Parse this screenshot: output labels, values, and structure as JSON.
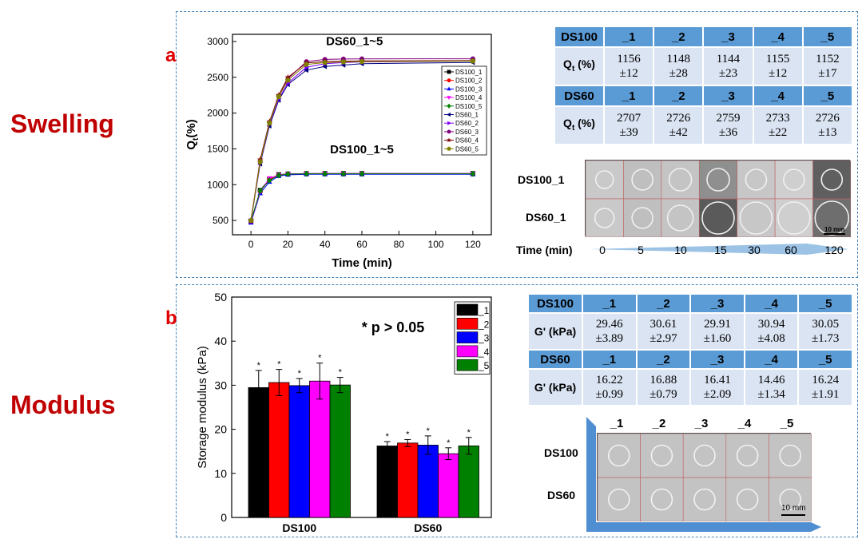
{
  "side_labels": {
    "swelling": "Swelling",
    "modulus": "Modulus"
  },
  "panels": {
    "a": "a",
    "b": "b"
  },
  "chart_data": [
    {
      "type": "line",
      "xlabel": "Time (min)",
      "ylabel": "Q",
      "ylabel_sub": "t",
      "ylabel_unit": "(%)",
      "xlim": [
        -10,
        130
      ],
      "ylim": [
        300,
        3100
      ],
      "xticks": [
        0,
        20,
        40,
        60,
        80,
        100,
        120
      ],
      "yticks": [
        500,
        1000,
        1500,
        2000,
        2500,
        3000
      ],
      "annotations": [
        "DS60_1~5",
        "DS100_1~5"
      ],
      "x": [
        0,
        5,
        10,
        15,
        20,
        30,
        40,
        50,
        60,
        120
      ],
      "series": [
        {
          "name": "DS100_1",
          "color": "#000000",
          "marker": "square",
          "values": [
            490,
            920,
            1080,
            1140,
            1150,
            1155,
            1156,
            1156,
            1156,
            1156
          ]
        },
        {
          "name": "DS100_2",
          "color": "#ff0000",
          "marker": "circle",
          "values": [
            480,
            910,
            1070,
            1130,
            1145,
            1148,
            1148,
            1148,
            1148,
            1148
          ]
        },
        {
          "name": "DS100_3",
          "color": "#0000ff",
          "marker": "triangle-up",
          "values": [
            470,
            880,
            1040,
            1120,
            1138,
            1144,
            1144,
            1144,
            1144,
            1144
          ]
        },
        {
          "name": "DS100_4",
          "color": "#ff00ff",
          "marker": "triangle-down",
          "values": [
            485,
            900,
            1090,
            1135,
            1150,
            1155,
            1155,
            1155,
            1155,
            1155
          ]
        },
        {
          "name": "DS100_5",
          "color": "#008000",
          "marker": "diamond",
          "values": [
            495,
            915,
            1060,
            1130,
            1148,
            1152,
            1152,
            1152,
            1152,
            1152
          ]
        },
        {
          "name": "DS60_1",
          "color": "#000080",
          "marker": "triangle-left",
          "values": [
            500,
            1290,
            1820,
            2180,
            2400,
            2600,
            2650,
            2670,
            2690,
            2707
          ]
        },
        {
          "name": "DS60_2",
          "color": "#8000ff",
          "marker": "triangle-right",
          "values": [
            495,
            1310,
            1850,
            2200,
            2420,
            2640,
            2690,
            2705,
            2715,
            2726
          ]
        },
        {
          "name": "DS60_3",
          "color": "#800080",
          "marker": "circle",
          "values": [
            490,
            1330,
            1870,
            2240,
            2480,
            2720,
            2750,
            2755,
            2758,
            2759
          ]
        },
        {
          "name": "DS60_4",
          "color": "#800000",
          "marker": "star",
          "values": [
            505,
            1350,
            1880,
            2250,
            2500,
            2700,
            2720,
            2725,
            2728,
            2733
          ]
        },
        {
          "name": "DS60_5",
          "color": "#808000",
          "marker": "pentagon",
          "values": [
            500,
            1320,
            1860,
            2230,
            2460,
            2680,
            2705,
            2715,
            2720,
            2726
          ]
        }
      ]
    },
    {
      "type": "bar",
      "ylabel": "Storage modulus (kPa)",
      "ylim": [
        0,
        50
      ],
      "yticks": [
        0,
        10,
        20,
        30,
        40,
        50
      ],
      "categories": [
        "DS100",
        "DS60"
      ],
      "annotation": "* p > 0.05",
      "bar_label": "*",
      "series": [
        {
          "name": "_1",
          "color": "#000000",
          "values": [
            29.46,
            16.22
          ],
          "errors": [
            3.89,
            0.99
          ]
        },
        {
          "name": "_2",
          "color": "#ff0000",
          "values": [
            30.61,
            16.88
          ],
          "errors": [
            2.97,
            0.79
          ]
        },
        {
          "name": "_3",
          "color": "#0000ff",
          "values": [
            29.91,
            16.41
          ],
          "errors": [
            1.6,
            2.09
          ]
        },
        {
          "name": "_4",
          "color": "#ff00ff",
          "values": [
            30.94,
            14.46
          ],
          "errors": [
            4.08,
            1.34
          ]
        },
        {
          "name": "_5",
          "color": "#008000",
          "values": [
            30.05,
            16.24
          ],
          "errors": [
            1.73,
            1.91
          ]
        }
      ]
    },
    {
      "type": "table",
      "title": "Qt",
      "columns": [
        "_1",
        "_2",
        "_3",
        "_4",
        "_5"
      ],
      "groups": [
        {
          "label": "DS100",
          "row_label": "Q",
          "row_sub": "t",
          "row_unit": " (%)",
          "values": [
            "1156",
            "1148",
            "1144",
            "1155",
            "1152"
          ],
          "errors": [
            "±12",
            "±28",
            "±23",
            "±12",
            "±17"
          ]
        },
        {
          "label": "DS60",
          "row_label": "Q",
          "row_sub": "t",
          "row_unit": " (%)",
          "values": [
            "2707",
            "2726",
            "2759",
            "2733",
            "2726"
          ],
          "errors": [
            "±39",
            "±42",
            "±36",
            "±22",
            "±13"
          ]
        }
      ]
    },
    {
      "type": "table",
      "title": "G'",
      "columns": [
        "_1",
        "_2",
        "_3",
        "_4",
        "_5"
      ],
      "groups": [
        {
          "label": "DS100",
          "row_label": "G' (kPa)",
          "values": [
            "29.46",
            "30.61",
            "29.91",
            "30.94",
            "30.05"
          ],
          "errors": [
            "±3.89",
            "±2.97",
            "±1.60",
            "±4.08",
            "±1.73"
          ]
        },
        {
          "label": "DS60",
          "row_label": "G' (kPa)",
          "values": [
            "16.22",
            "16.88",
            "16.41",
            "14.46",
            "16.24"
          ],
          "errors": [
            "±0.99",
            "±0.79",
            "±2.09",
            "±1.34",
            "±1.91"
          ]
        }
      ]
    }
  ],
  "swelling_photos": {
    "rows": [
      "DS100_1",
      "DS60_1"
    ],
    "time_label": "Time (min)",
    "times": [
      "0",
      "5",
      "10",
      "15",
      "30",
      "60",
      "120"
    ],
    "scale": "10 mm"
  },
  "modulus_photos": {
    "columns": [
      "_1",
      "_2",
      "_3",
      "_4",
      "_5"
    ],
    "rows": [
      "DS100",
      "DS60"
    ],
    "scale": "10 mm"
  }
}
